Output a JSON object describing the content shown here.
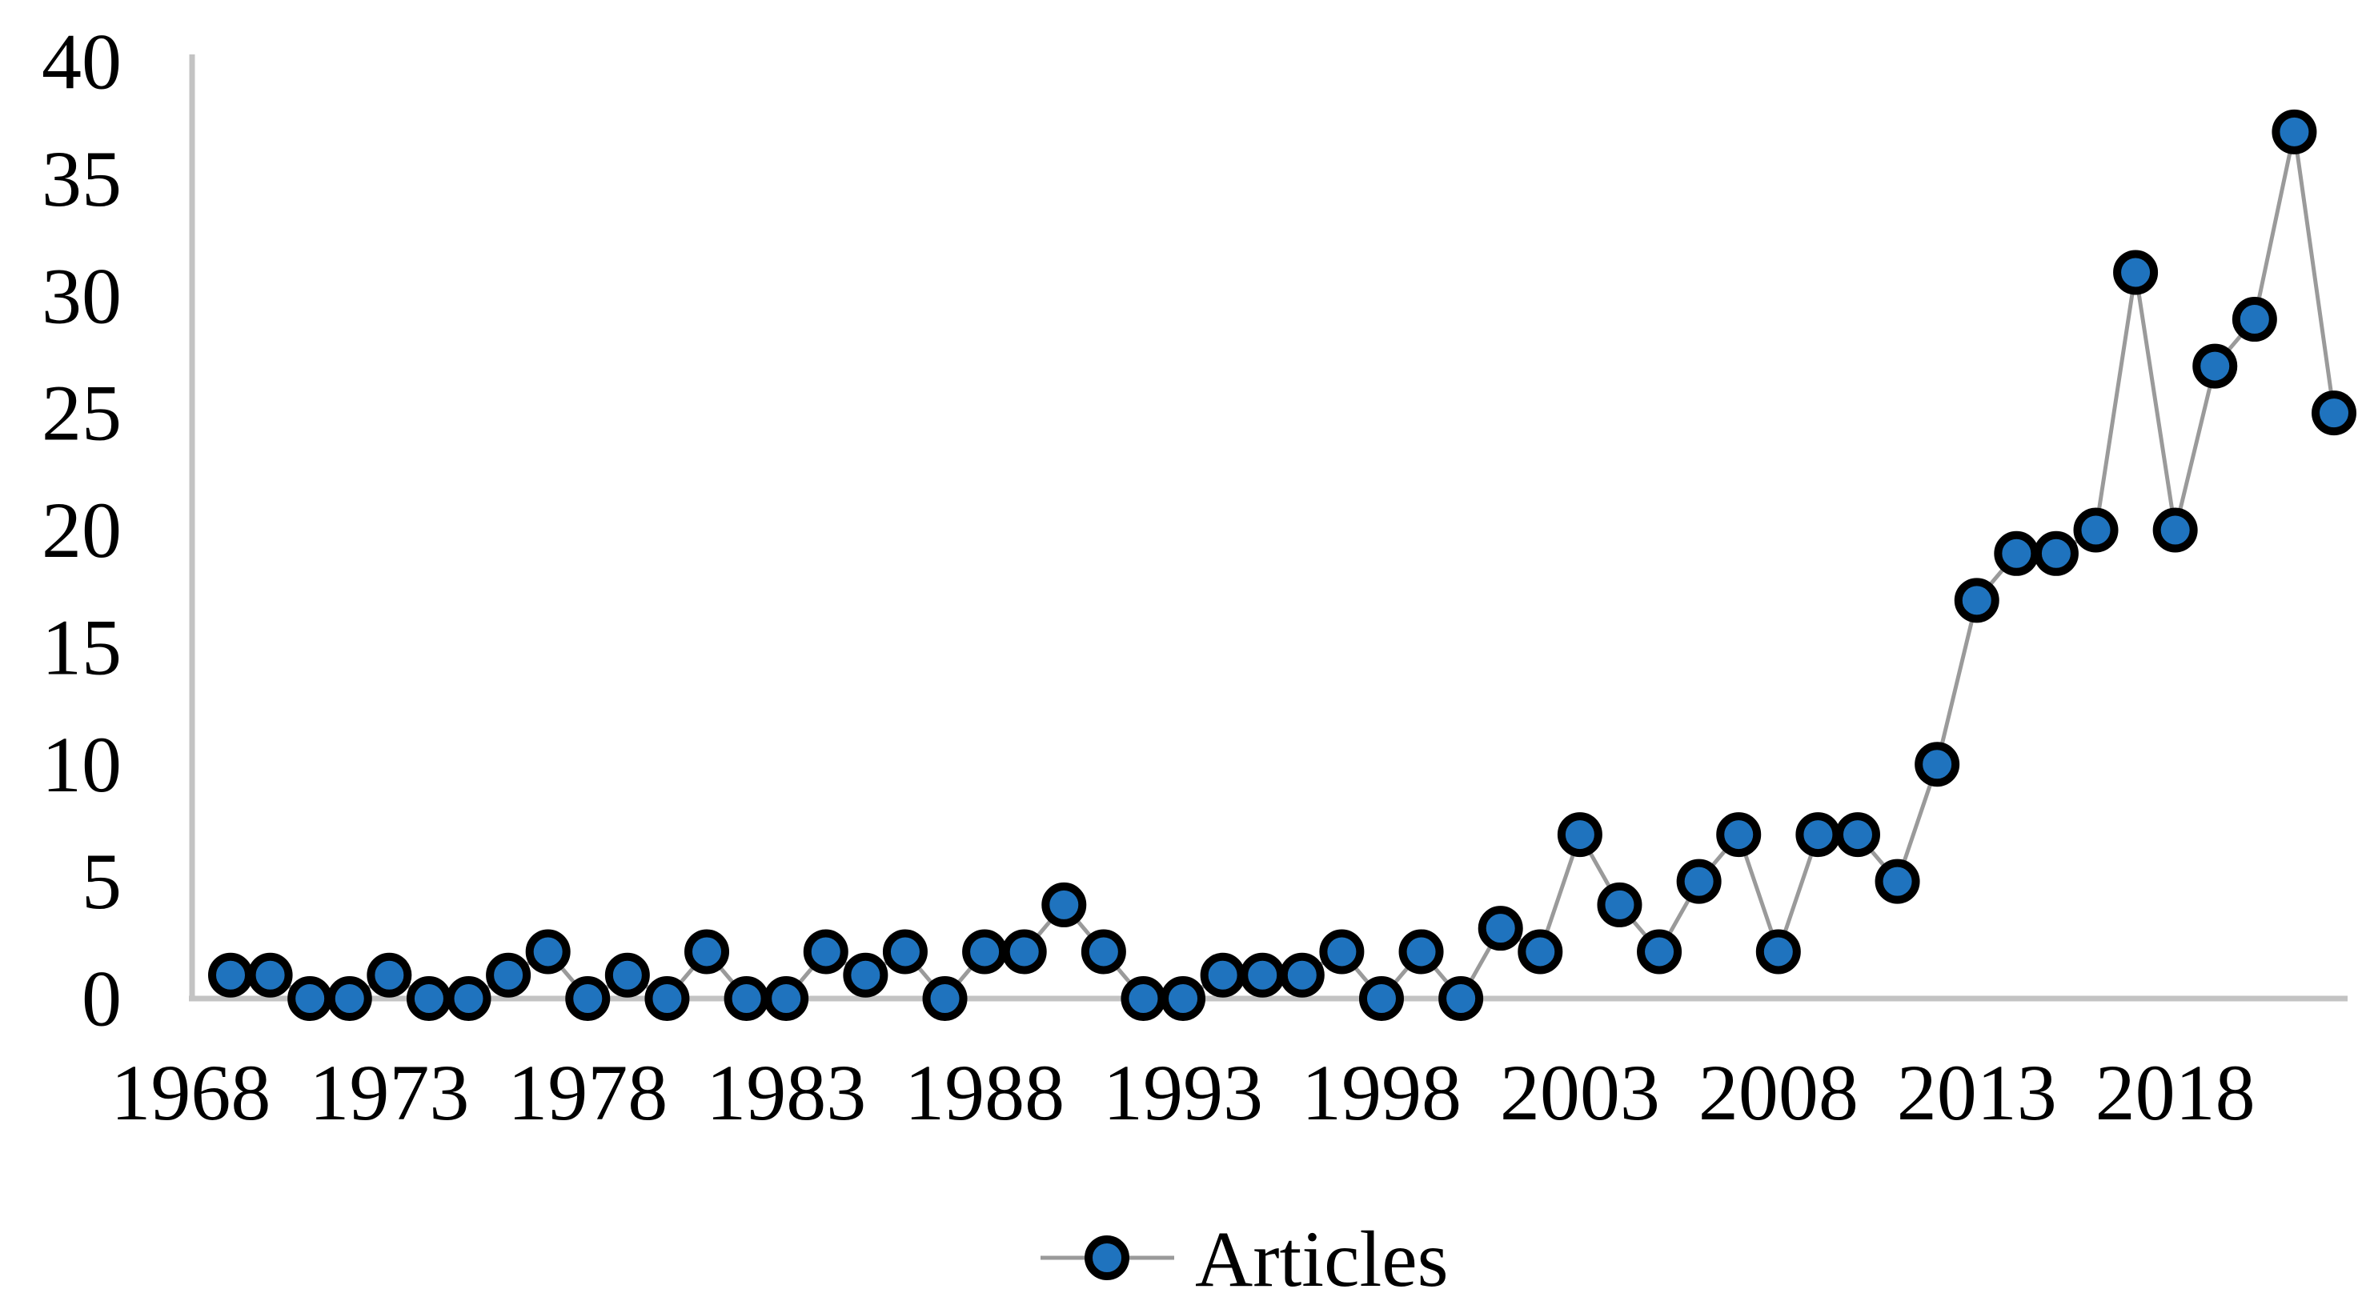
{
  "chart_data": {
    "type": "line",
    "title": "",
    "xlabel": "",
    "ylabel": "",
    "grid": false,
    "legend_position": "bottom-center",
    "ylim": [
      0,
      40
    ],
    "y_ticks": [
      0,
      5,
      10,
      15,
      20,
      25,
      30,
      35,
      40
    ],
    "x_ticks": [
      1968,
      1973,
      1978,
      1983,
      1988,
      1993,
      1998,
      2003,
      2008,
      2013,
      2018
    ],
    "series": [
      {
        "name": "Articles",
        "x": [
          1969,
          1970,
          1971,
          1972,
          1973,
          1974,
          1975,
          1976,
          1977,
          1978,
          1979,
          1980,
          1981,
          1982,
          1983,
          1984,
          1985,
          1986,
          1987,
          1988,
          1989,
          1990,
          1991,
          1992,
          1993,
          1994,
          1995,
          1996,
          1997,
          1998,
          1999,
          2000,
          2001,
          2002,
          2003,
          2004,
          2005,
          2006,
          2007,
          2008,
          2009,
          2010,
          2011,
          2012,
          2013,
          2014,
          2015,
          2016,
          2017,
          2018,
          2019,
          2020,
          2021,
          2022
        ],
        "values": [
          1,
          1,
          0,
          0,
          1,
          0,
          0,
          1,
          2,
          0,
          1,
          0,
          2,
          0,
          0,
          2,
          1,
          2,
          0,
          2,
          2,
          4,
          2,
          0,
          0,
          1,
          1,
          1,
          2,
          0,
          2,
          0,
          3,
          2,
          7,
          4,
          2,
          5,
          7,
          2,
          7,
          7,
          5,
          10,
          17,
          19,
          19,
          20,
          31,
          20,
          27,
          29,
          37,
          25
        ]
      }
    ],
    "colors": {
      "marker_fill": "#1F73BE",
      "marker_stroke": "#000000",
      "line": "#9A9A9A",
      "axis": "#C3C3C3",
      "text": "#000000",
      "background": "#FFFFFF"
    }
  }
}
